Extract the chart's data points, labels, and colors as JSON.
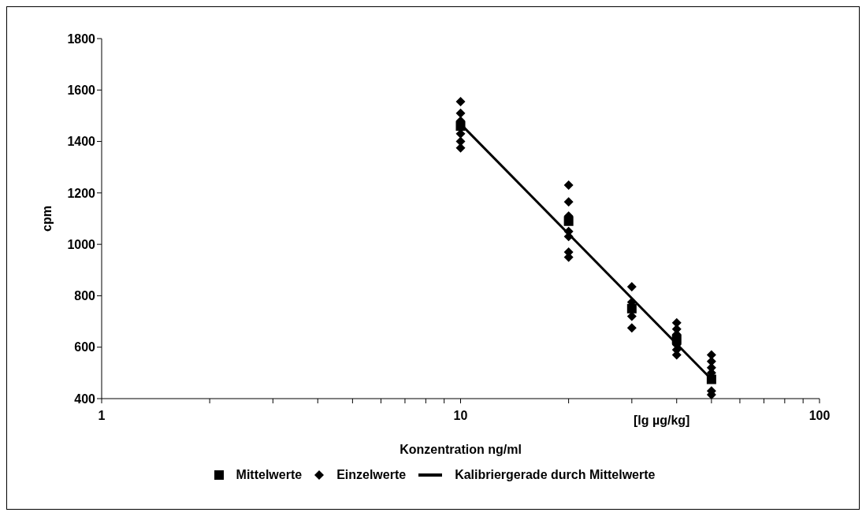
{
  "chart_data": {
    "type": "scatter",
    "xlabel": "Konzentration ng/ml",
    "ylabel": "cpm",
    "log": "x",
    "xlim": [
      1,
      100
    ],
    "xticks": [
      1,
      {
        "value": 2,
        "label": null
      },
      {
        "value": 3,
        "label": null
      },
      {
        "value": 4,
        "label": null
      },
      {
        "value": 5,
        "label": null
      },
      {
        "value": 6,
        "label": null
      },
      {
        "value": 7,
        "label": null
      },
      {
        "value": 8,
        "label": null
      },
      {
        "value": 9,
        "label": null
      },
      10,
      {
        "value": 20,
        "label": null
      },
      {
        "value": 30,
        "label": null
      },
      {
        "value": 40,
        "label": null
      },
      {
        "value": 50,
        "label": null
      },
      {
        "value": 60,
        "label": null
      },
      {
        "value": 70,
        "label": null
      },
      {
        "value": 80,
        "label": null
      },
      {
        "value": 90,
        "label": null
      },
      100
    ],
    "ylim": [
      400,
      1800
    ],
    "yticks": [
      400,
      600,
      800,
      1000,
      1200,
      1400,
      1600,
      1800
    ],
    "grid": false,
    "legend": "bottom",
    "annotations": [
      "[lg µg/kg]"
    ],
    "series": [
      {
        "name": "Mittelwerte",
        "marker": "square",
        "color": "#000000",
        "x": [
          10,
          20,
          30,
          40,
          50
        ],
        "values": [
          1460,
          1090,
          750,
          630,
          475
        ]
      },
      {
        "name": "Einzelwerte",
        "marker": "diamond",
        "color": "#000000",
        "x": [
          10,
          10,
          10,
          10,
          10,
          10,
          20,
          20,
          20,
          20,
          20,
          20,
          20,
          30,
          30,
          30,
          30,
          40,
          40,
          40,
          40,
          40,
          40,
          50,
          50,
          50,
          50,
          50,
          50
        ],
        "values": [
          1555,
          1510,
          1480,
          1430,
          1400,
          1375,
          1230,
          1165,
          1110,
          1050,
          1030,
          970,
          950,
          835,
          775,
          720,
          675,
          695,
          670,
          650,
          610,
          590,
          570,
          570,
          545,
          520,
          500,
          430,
          415
        ]
      },
      {
        "name": "Kalibriergerade durch Mittelwerte",
        "type": "line",
        "marker": "none",
        "color": "#000000",
        "x": [
          10,
          50
        ],
        "values": [
          1468,
          475
        ]
      }
    ]
  }
}
